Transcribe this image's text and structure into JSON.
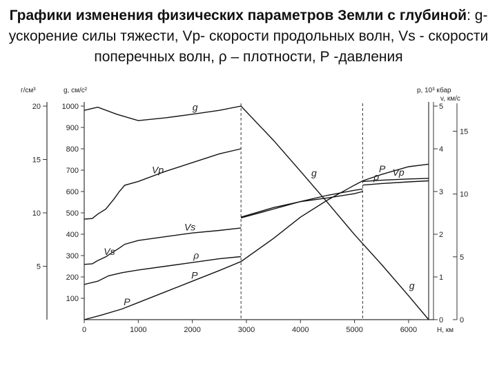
{
  "slide": {
    "title_bold": "Графики изменения физических параметров Земли с глубиной",
    "title_rest": ": g- ускорение силы тяжести, Vp- скорости продольных волн, Vs - скорости поперечных волн, ρ – плотности, Р -давления"
  },
  "chart_data": {
    "type": "line",
    "x": {
      "label": "Н, км",
      "range": [
        0,
        6371
      ],
      "ticks": [
        0,
        1000,
        2000,
        3000,
        4000,
        5000,
        6000
      ]
    },
    "axes": {
      "rho": {
        "unit_label": "г/см³",
        "range": [
          0,
          20
        ],
        "ticks": [
          5,
          10,
          15,
          20
        ]
      },
      "g": {
        "unit_label": "g, см/с²",
        "range": [
          0,
          1000
        ],
        "ticks": [
          100,
          200,
          300,
          400,
          500,
          600,
          700,
          800,
          900,
          1000
        ]
      },
      "p": {
        "unit_label": "р, 10³ кбар",
        "range": [
          0,
          5
        ],
        "ticks": [
          0,
          1,
          2,
          3,
          4,
          5
        ]
      },
      "v": {
        "unit_label": "v, км/с",
        "range": [
          0,
          17
        ],
        "ticks": [
          0,
          5,
          10,
          15
        ]
      }
    },
    "boundaries_km": [
      2900,
      5150
    ],
    "series": [
      {
        "name": "g",
        "axis": "g",
        "label_km": 1950,
        "points": [
          [
            0,
            980
          ],
          [
            250,
            995
          ],
          [
            600,
            962
          ],
          [
            1000,
            932
          ],
          [
            1500,
            945
          ],
          [
            2000,
            962
          ],
          [
            2500,
            980
          ],
          [
            2900,
            1000
          ],
          [
            3500,
            840
          ],
          [
            4000,
            695
          ],
          [
            4500,
            548
          ],
          [
            5000,
            398
          ],
          [
            5500,
            258
          ],
          [
            6000,
            112
          ],
          [
            6371,
            0
          ]
        ]
      },
      {
        "name": "g",
        "axis": "g",
        "label_km": 4150,
        "points": []
      },
      {
        "name": "g",
        "axis": "g",
        "label_km": 5960,
        "points": []
      },
      {
        "name": "ρ",
        "axis": "rho",
        "label_km": 1970,
        "points": [
          [
            0,
            3.3
          ],
          [
            250,
            3.6
          ],
          [
            450,
            4.1
          ],
          [
            700,
            4.4
          ],
          [
            1000,
            4.65
          ],
          [
            1500,
            5.0
          ],
          [
            2000,
            5.35
          ],
          [
            2500,
            5.7
          ],
          [
            2900,
            5.9
          ],
          [
            2900,
            9.6
          ],
          [
            3500,
            10.5
          ],
          [
            4000,
            11.05
          ],
          [
            4500,
            11.4
          ],
          [
            5000,
            11.8
          ],
          [
            5150,
            12.0
          ],
          [
            5150,
            12.6
          ],
          [
            5500,
            12.75
          ],
          [
            6000,
            12.9
          ],
          [
            6371,
            13.0
          ]
        ]
      },
      {
        "name": "ρ",
        "axis": "rho",
        "label_km": 5300,
        "points": []
      },
      {
        "name": "P",
        "axis": "p",
        "label_km": 1930,
        "points": [
          [
            0,
            0
          ],
          [
            300,
            0.1
          ],
          [
            700,
            0.25
          ],
          [
            1000,
            0.4
          ],
          [
            1500,
            0.65
          ],
          [
            2000,
            0.9
          ],
          [
            2500,
            1.15
          ],
          [
            2900,
            1.36
          ],
          [
            3500,
            1.9
          ],
          [
            4000,
            2.4
          ],
          [
            4500,
            2.8
          ],
          [
            5000,
            3.15
          ],
          [
            5150,
            3.25
          ],
          [
            5500,
            3.4
          ],
          [
            6000,
            3.58
          ],
          [
            6371,
            3.64
          ]
        ]
      },
      {
        "name": "P",
        "axis": "p",
        "label_km": 5400,
        "points": []
      },
      {
        "name": "P",
        "axis": "p",
        "label_km": 680,
        "points": []
      },
      {
        "name": "Vp",
        "axis": "v",
        "label_km": 1200,
        "points": [
          [
            0,
            8.0
          ],
          [
            150,
            8.05
          ],
          [
            250,
            8.4
          ],
          [
            400,
            8.8
          ],
          [
            550,
            9.6
          ],
          [
            650,
            10.2
          ],
          [
            750,
            10.7
          ],
          [
            1000,
            11.0
          ],
          [
            1500,
            11.8
          ],
          [
            2000,
            12.5
          ],
          [
            2500,
            13.2
          ],
          [
            2900,
            13.6
          ],
          [
            2900,
            8.1
          ],
          [
            3500,
            8.8
          ],
          [
            4000,
            9.4
          ],
          [
            4500,
            9.9
          ],
          [
            5000,
            10.3
          ],
          [
            5150,
            10.4
          ],
          [
            5150,
            11.0
          ],
          [
            5500,
            11.1
          ],
          [
            6000,
            11.2
          ],
          [
            6371,
            11.25
          ]
        ]
      },
      {
        "name": "Vp",
        "axis": "v",
        "label_km": 5650,
        "points": []
      },
      {
        "name": "Vs",
        "axis": "v",
        "label_km": 1800,
        "points": [
          [
            0,
            4.4
          ],
          [
            150,
            4.45
          ],
          [
            250,
            4.7
          ],
          [
            400,
            5.0
          ],
          [
            500,
            5.3
          ],
          [
            650,
            5.7
          ],
          [
            750,
            6.0
          ],
          [
            1000,
            6.3
          ],
          [
            1500,
            6.6
          ],
          [
            2000,
            6.9
          ],
          [
            2500,
            7.1
          ],
          [
            2900,
            7.3
          ]
        ]
      },
      {
        "name": "Vs",
        "axis": "v",
        "label_km": 310,
        "points": []
      }
    ]
  }
}
